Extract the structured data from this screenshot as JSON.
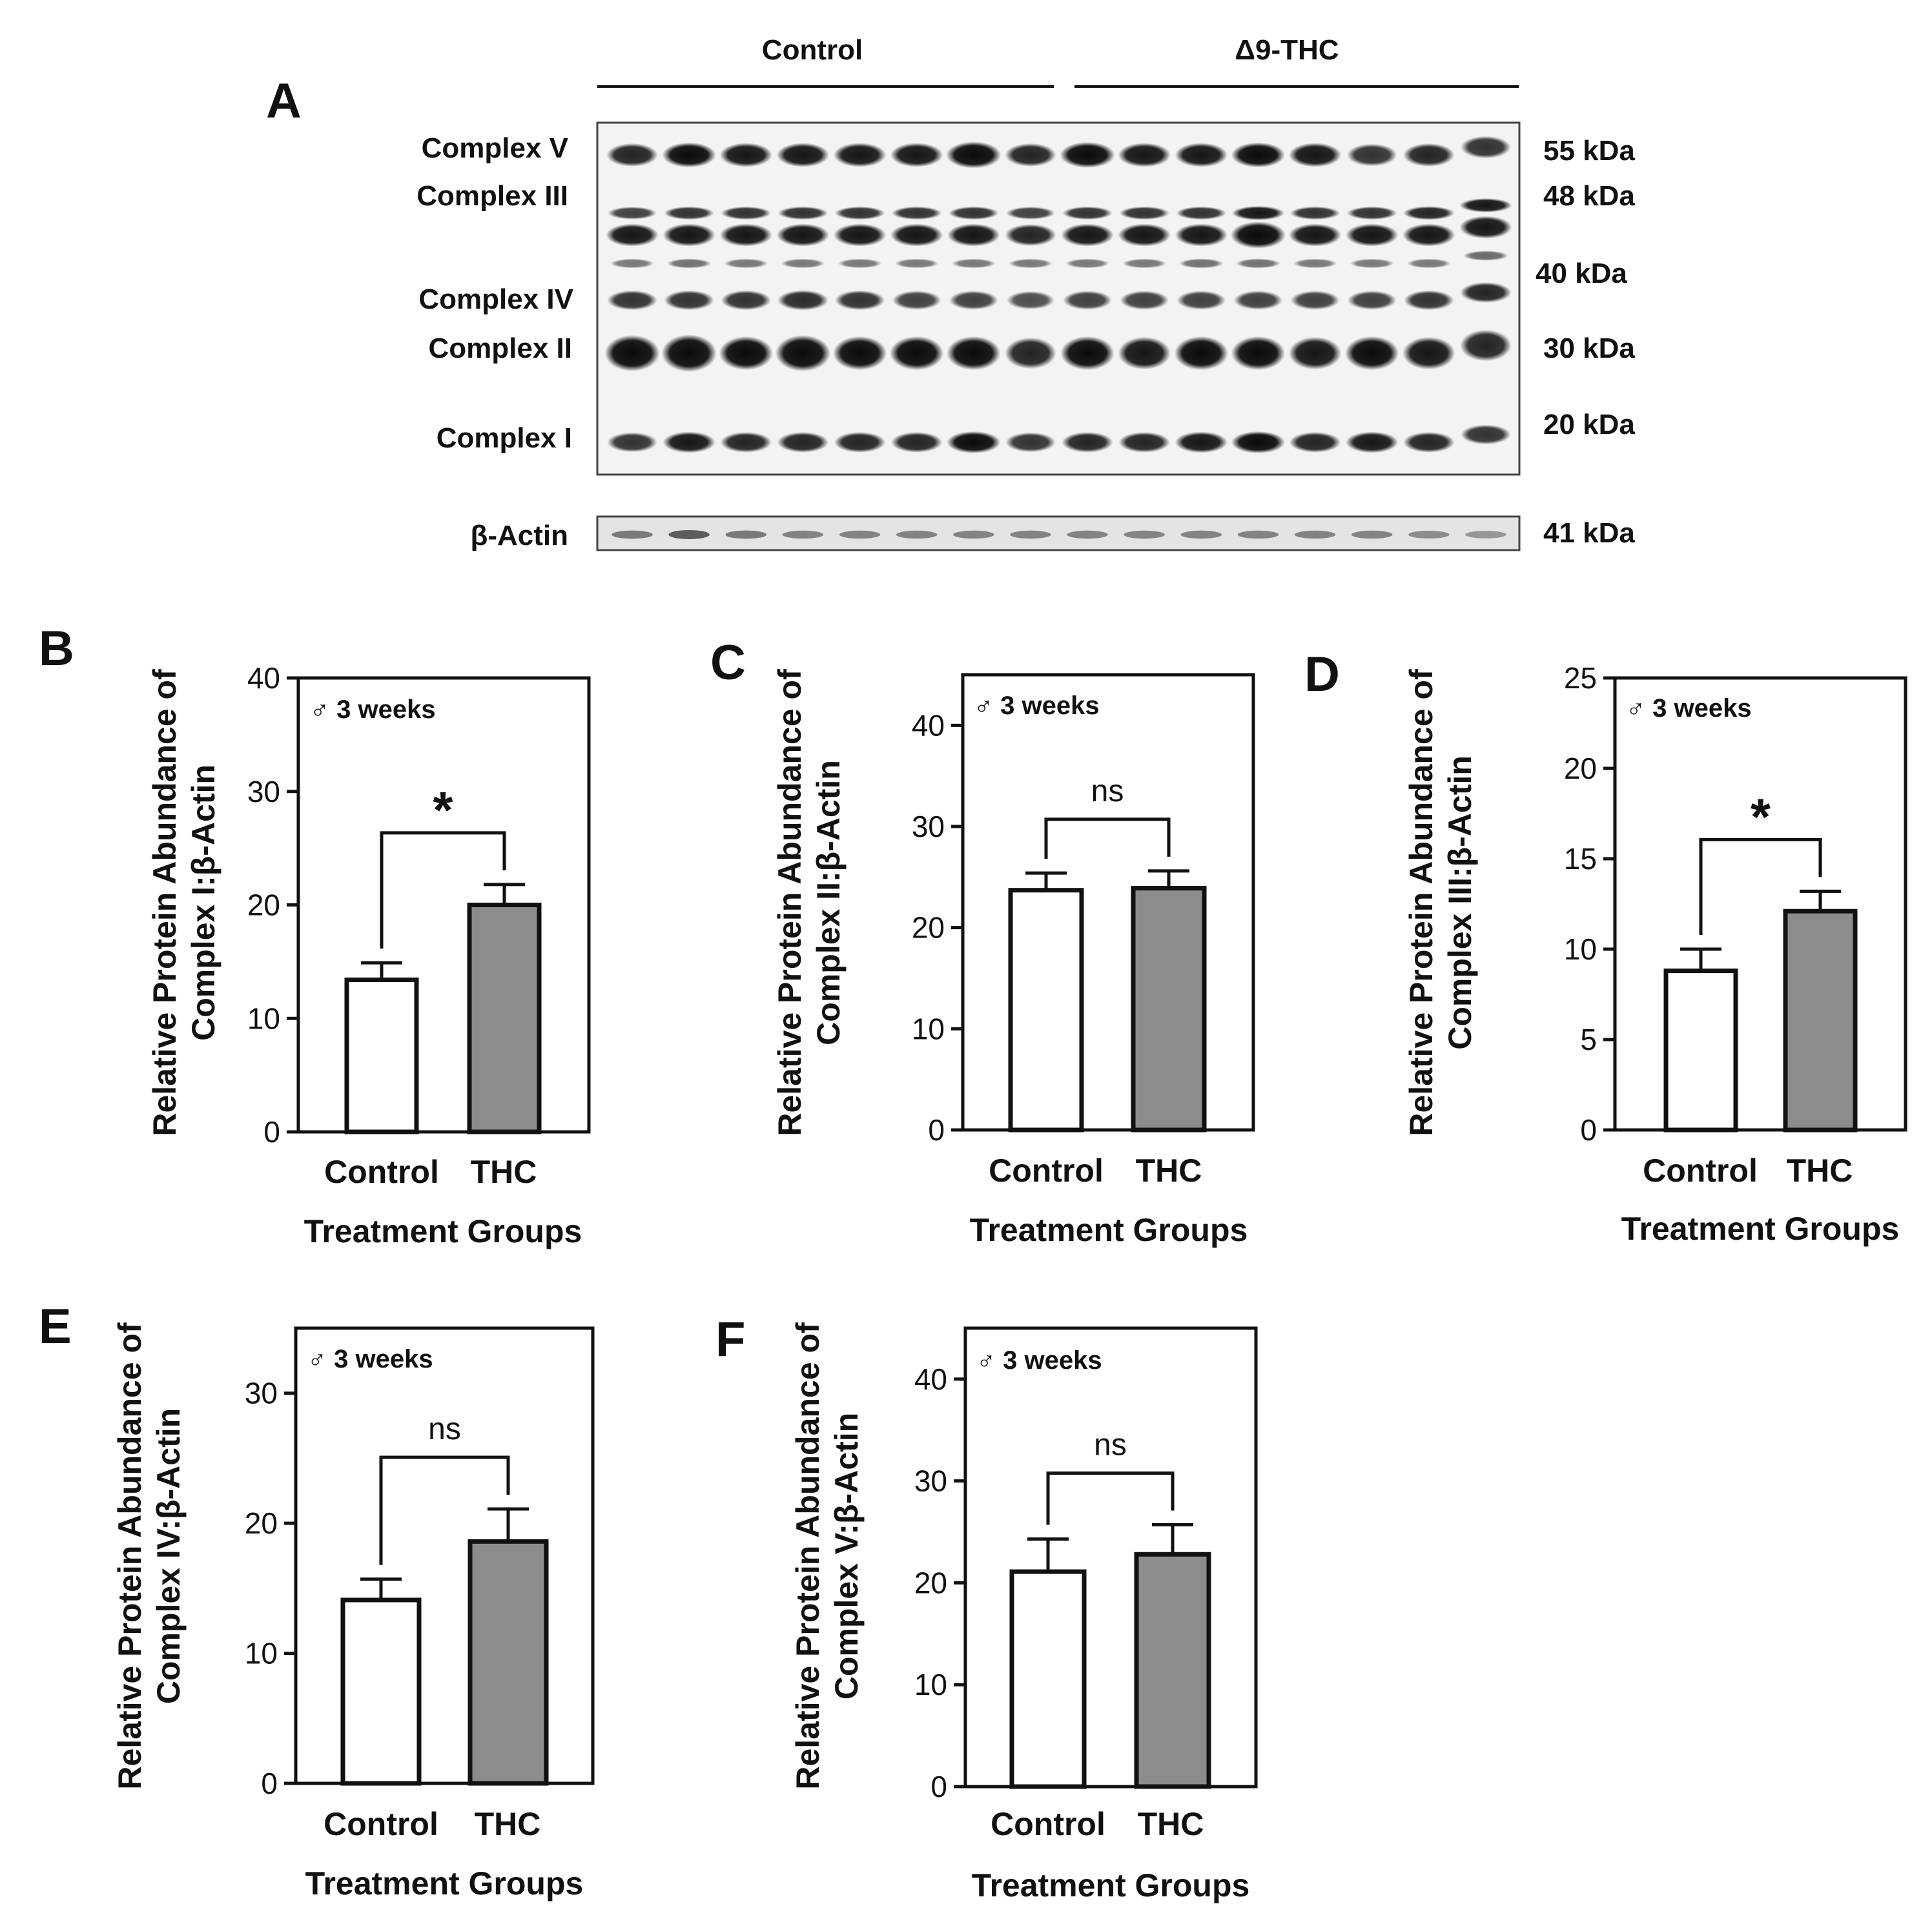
{
  "blot": {
    "panel_letter": "A",
    "groups": [
      "Control",
      "Δ9-THC"
    ],
    "bands": [
      {
        "label": "Complex V",
        "kda": "55 kDa"
      },
      {
        "label": "Complex III",
        "kda": "48 kDa"
      },
      {
        "label": "Complex IV",
        "kda": "40 kDa"
      },
      {
        "label": "Complex II",
        "kda": "30 kDa"
      },
      {
        "label": "Complex I",
        "kda": "20 kDa"
      }
    ],
    "loading_control": {
      "label": "β-Actin",
      "kda": "41 kDa"
    }
  },
  "chart_data": [
    {
      "panel": "B",
      "type": "bar",
      "inset": "♂ 3 weeks",
      "categories": [
        "Control",
        "THC"
      ],
      "values": [
        13.4,
        20.0
      ],
      "errors": [
        1.5,
        1.8
      ],
      "bar_colors": [
        "#ffffff",
        "#8c8c8c"
      ],
      "ylim": [
        0,
        40
      ],
      "yticks": [
        0,
        10,
        20,
        30,
        40
      ],
      "ylabel_line1": "Relative Protein Abundance of",
      "ylabel_line2": "Complex I:β-Actin",
      "xlabel": "Treatment Groups",
      "significance": "*"
    },
    {
      "panel": "C",
      "type": "bar",
      "inset": "♂ 3 weeks",
      "categories": [
        "Control",
        "THC"
      ],
      "values": [
        23.7,
        23.9
      ],
      "errors": [
        1.7,
        1.7
      ],
      "bar_colors": [
        "#ffffff",
        "#8c8c8c"
      ],
      "ylim": [
        0,
        45
      ],
      "yticks": [
        0,
        10,
        20,
        30,
        40
      ],
      "ylabel_line1": "Relative Protein Abundance of",
      "ylabel_line2": "Complex II:β-Actin",
      "xlabel": "Treatment Groups",
      "significance": "ns"
    },
    {
      "panel": "D",
      "type": "bar",
      "inset": "♂ 3 weeks",
      "categories": [
        "Control",
        "THC"
      ],
      "values": [
        8.8,
        12.1
      ],
      "errors": [
        1.2,
        1.1
      ],
      "bar_colors": [
        "#ffffff",
        "#8c8c8c"
      ],
      "ylim": [
        0,
        25
      ],
      "yticks": [
        0,
        5,
        10,
        15,
        20,
        25
      ],
      "ylabel_line1": "Relative Protein Abundance of",
      "ylabel_line2": "Complex III:β-Actin",
      "xlabel": "Treatment Groups",
      "significance": "*"
    },
    {
      "panel": "E",
      "type": "bar",
      "inset": "♂ 3 weeks",
      "categories": [
        "Control",
        "THC"
      ],
      "values": [
        14.1,
        18.6
      ],
      "errors": [
        1.6,
        2.5
      ],
      "bar_colors": [
        "#ffffff",
        "#8c8c8c"
      ],
      "ylim": [
        0,
        35
      ],
      "yticks": [
        0,
        10,
        20,
        30
      ],
      "ylabel_line1": "Relative Protein Abundance of",
      "ylabel_line2": "Complex IV:β-Actin",
      "xlabel": "Treatment Groups",
      "significance": "ns"
    },
    {
      "panel": "F",
      "type": "bar",
      "inset": "♂ 3 weeks",
      "categories": [
        "Control",
        "THC"
      ],
      "values": [
        21.1,
        22.8
      ],
      "errors": [
        3.2,
        2.9
      ],
      "bar_colors": [
        "#ffffff",
        "#8c8c8c"
      ],
      "ylim": [
        0,
        45
      ],
      "yticks": [
        0,
        10,
        20,
        30,
        40
      ],
      "ylabel_line1": "Relative Protein Abundance of",
      "ylabel_line2": "Complex V:β-Actin",
      "xlabel": "Treatment Groups",
      "significance": "ns"
    }
  ]
}
